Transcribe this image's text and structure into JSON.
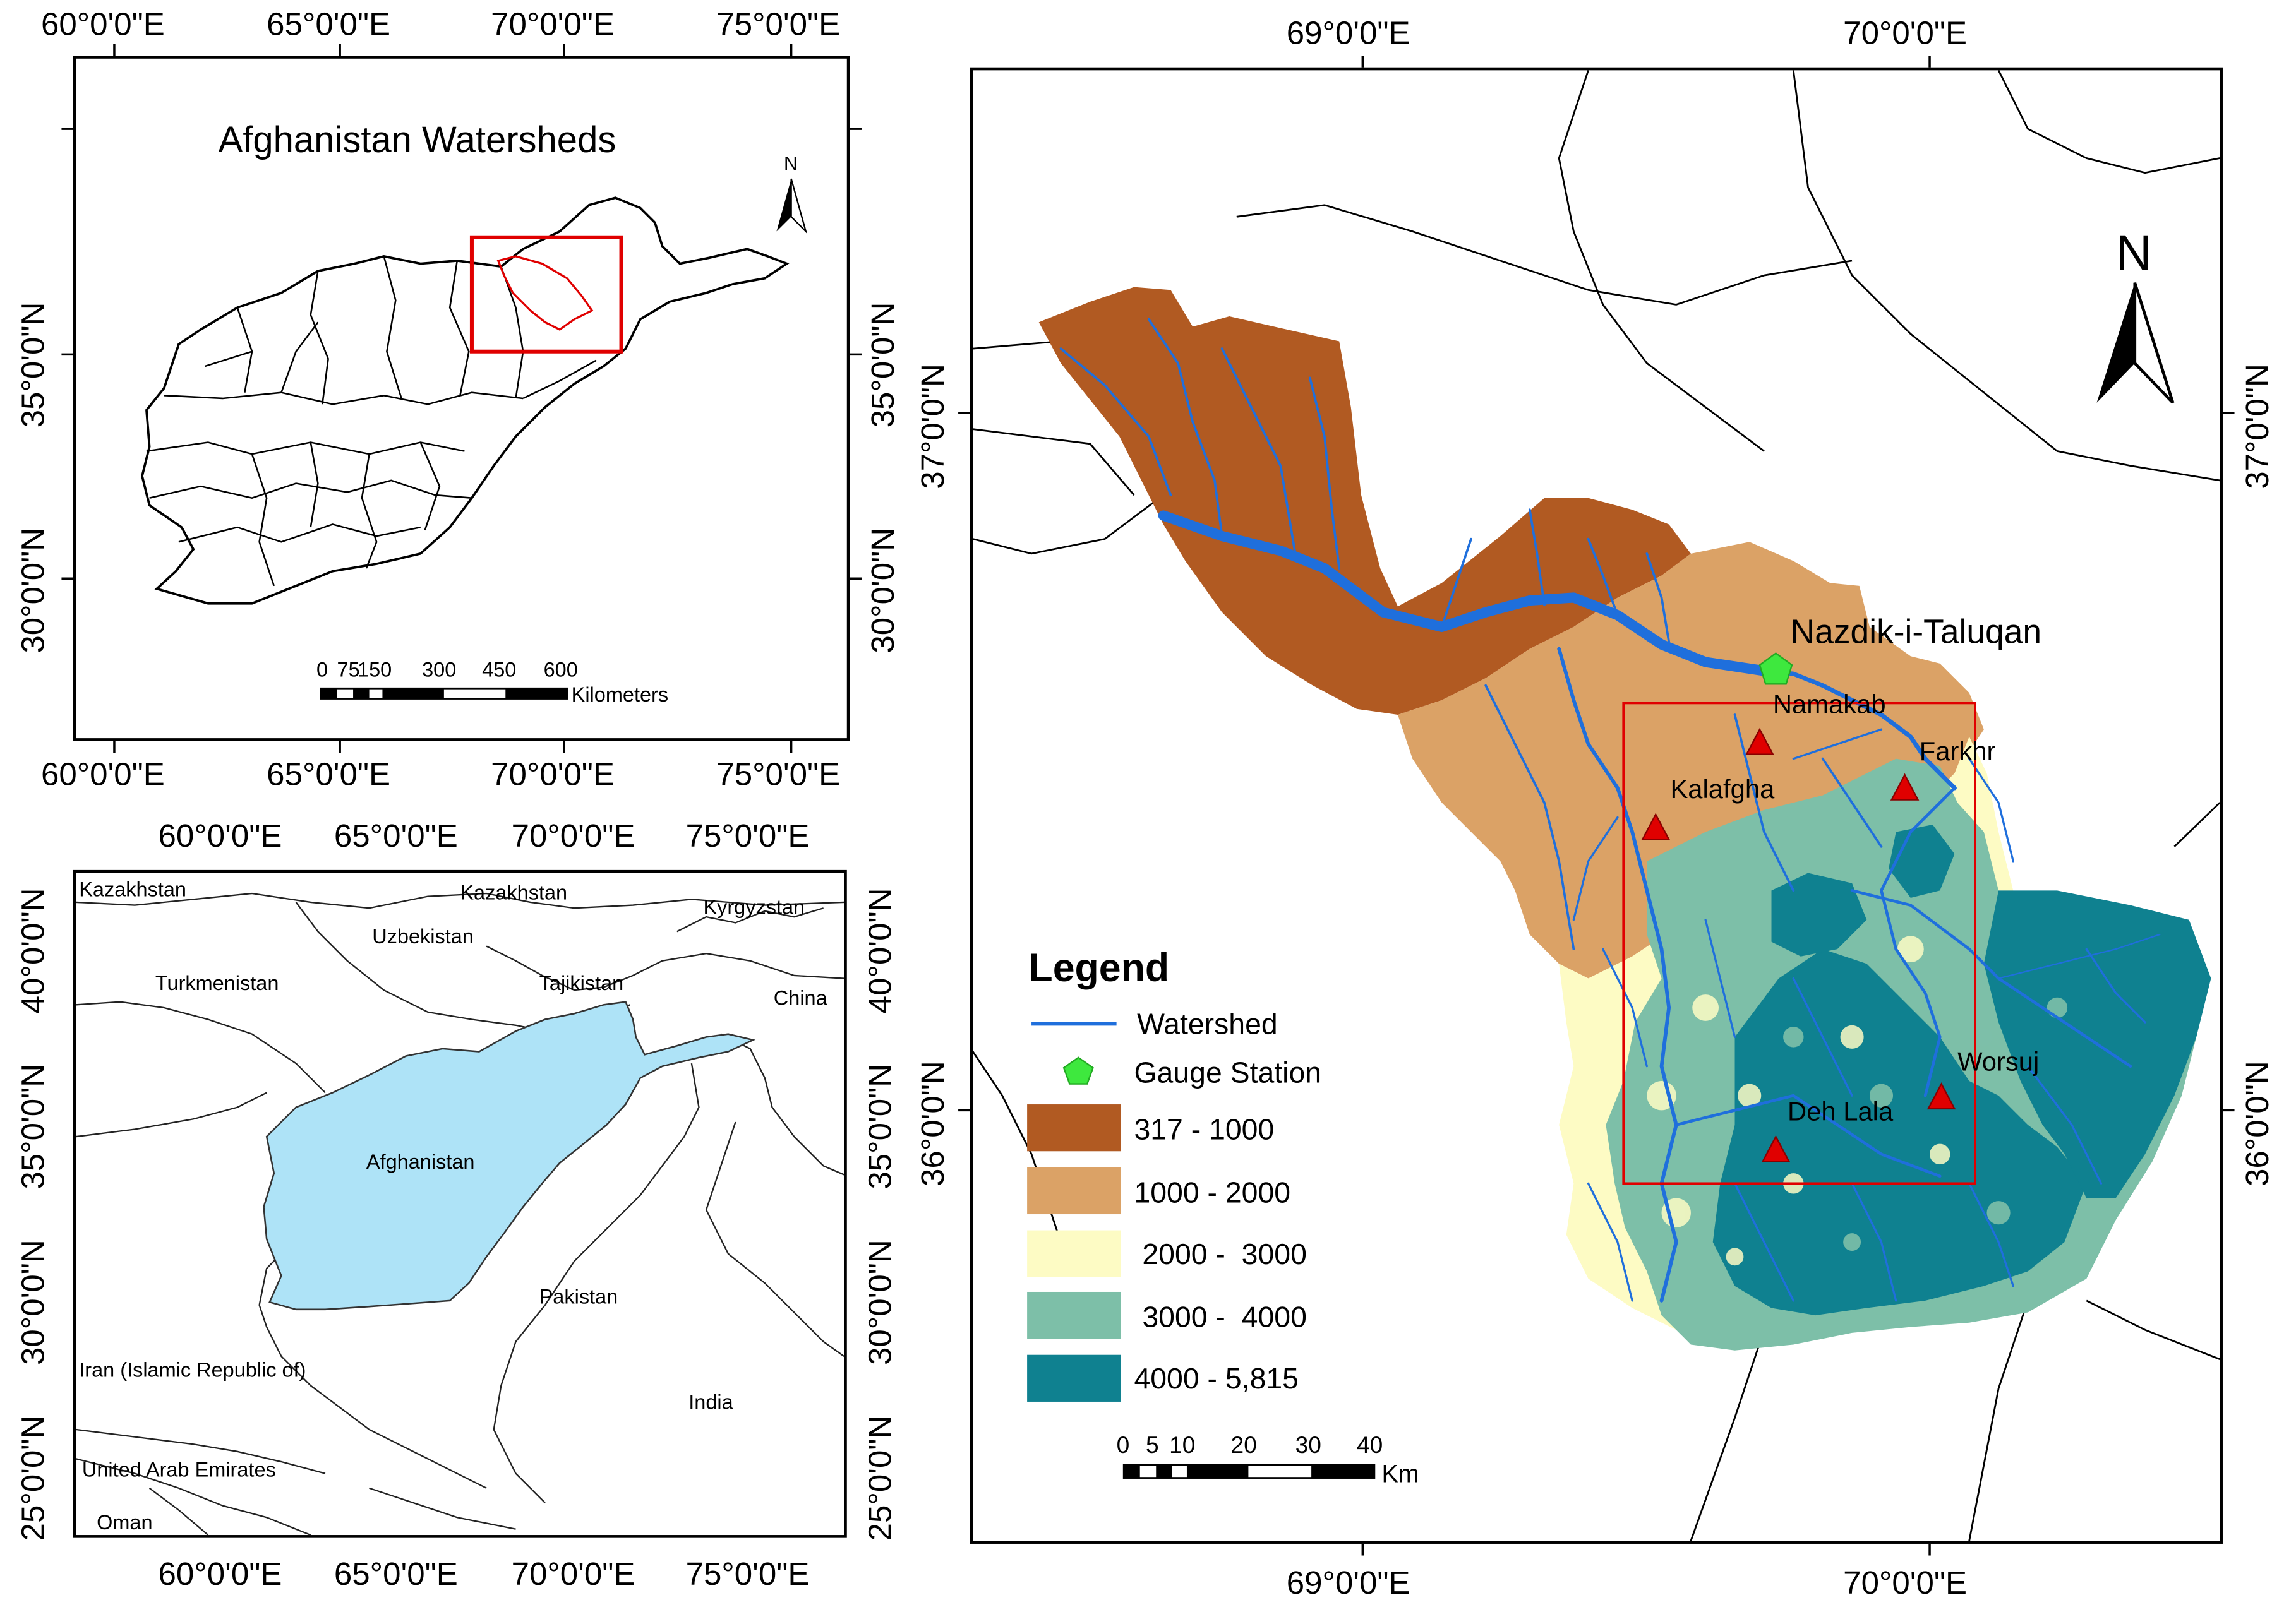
{
  "top_left_map": {
    "title": "Afghanistan Watersheds",
    "north_label": "N",
    "top_ticks": [
      "60°0'0\"E",
      "65°0'0\"E",
      "70°0'0\"E",
      "75°0'0\"E"
    ],
    "bottom_ticks": [
      "60°0'0\"E",
      "65°0'0\"E",
      "70°0'0\"E",
      "75°0'0\"E"
    ],
    "left_ticks": [
      "35°0'0\"N",
      "30°0'0\"N"
    ],
    "right_ticks": [
      "35°0'0\"N",
      "30°0'0\"N"
    ],
    "scalebar": {
      "ticks": [
        "0",
        "75",
        "150",
        "300",
        "450",
        "600"
      ],
      "unit": "Kilometers"
    }
  },
  "bottom_left_map": {
    "top_ticks": [
      "60°0'0\"E",
      "65°0'0\"E",
      "70°0'0\"E",
      "75°0'0\"E"
    ],
    "bottom_ticks": [
      "60°0'0\"E",
      "65°0'0\"E",
      "70°0'0\"E",
      "75°0'0\"E"
    ],
    "left_ticks": [
      "40°0'0\"N",
      "35°0'0\"N",
      "30°0'0\"N",
      "25°0'0\"N"
    ],
    "right_ticks": [
      "40°0'0\"N",
      "35°0'0\"N",
      "30°0'0\"N",
      "25°0'0\"N"
    ],
    "countries": {
      "kazakhstan_west": "Kazakhstan",
      "kazakhstan_east": "Kazakhstan",
      "kyrgyzstan": "Kyrgyzstan",
      "uzbekistan": "Uzbekistan",
      "turkmenistan": "Turkmenistan",
      "tajikistan": "Tajikistan",
      "china": "China",
      "afghanistan": "Afghanistan",
      "pakistan": "Pakistan",
      "iran": "Iran (Islamic Republic of)",
      "india": "India",
      "uae": "United Arab Emirates",
      "oman": "Oman"
    },
    "colors": {
      "afghanistan_fill": "#aee3f7"
    }
  },
  "right_map": {
    "north_label": "N",
    "top_ticks": [
      "69°0'0\"E",
      "70°0'0\"E"
    ],
    "bottom_ticks": [
      "69°0'0\"E",
      "70°0'0\"E"
    ],
    "left_ticks": [
      "37°0'0\"N",
      "36°0'0\"N"
    ],
    "right_ticks": [
      "37°0'0\"N",
      "36°0'0\"N"
    ],
    "stations": {
      "gauge": "Nazdik-i-Taluqan",
      "namakab": "Namakab",
      "farkhr": "Farkhr",
      "kalafgha": "Kalafgha",
      "worsuj": "Worsuj",
      "deh_lala": "Deh Lala"
    },
    "legend": {
      "title": "Legend",
      "watershed": "Watershed",
      "gauge_station": "Gauge Station",
      "classes": [
        {
          "label": "317 - 1000",
          "color": "#b15a22"
        },
        {
          "label": "1000 - 2000",
          "color": "#dba266"
        },
        {
          "label": " 2000 -  3000",
          "color": "#fdfbc4"
        },
        {
          "label": " 3000 -  4000",
          "color": "#7dbfa8"
        },
        {
          "label": "4000 - 5,815",
          "color": "#0f8190"
        }
      ]
    },
    "scalebar": {
      "ticks": [
        "0",
        "5",
        "10",
        "20",
        "30",
        "40"
      ],
      "unit": "Km"
    },
    "colors": {
      "river": "#1f6fdc",
      "station_marker": "#e00000",
      "gauge_marker": "#3ee83e",
      "study_box": "#e00000"
    }
  }
}
